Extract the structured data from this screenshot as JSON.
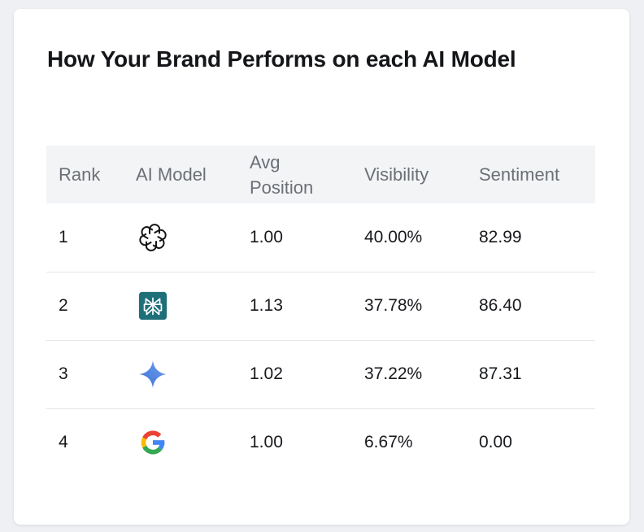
{
  "card": {
    "title": "How Your Brand Performs on each AI Model"
  },
  "table": {
    "headers": {
      "rank": "Rank",
      "model": "AI Model",
      "position_line1": "Avg",
      "position_line2": "Position",
      "visibility": "Visibility",
      "sentiment": "Sentiment"
    },
    "rows": [
      {
        "rank": "1",
        "model_icon": "openai-icon",
        "avg_position": "1.00",
        "visibility": "40.00%",
        "sentiment": "82.99"
      },
      {
        "rank": "2",
        "model_icon": "perplexity-icon",
        "avg_position": "1.13",
        "visibility": "37.78%",
        "sentiment": "86.40"
      },
      {
        "rank": "3",
        "model_icon": "gemini-icon",
        "avg_position": "1.02",
        "visibility": "37.22%",
        "sentiment": "87.31"
      },
      {
        "rank": "4",
        "model_icon": "google-icon",
        "avg_position": "1.00",
        "visibility": "6.67%",
        "sentiment": "0.00"
      }
    ]
  },
  "colors": {
    "perplexity_teal": "#1f6f78",
    "gemini_blue": "#4a7bd8",
    "google_blue": "#4285f4",
    "google_red": "#ea4335",
    "google_yellow": "#fbbc05",
    "google_green": "#34a853"
  }
}
